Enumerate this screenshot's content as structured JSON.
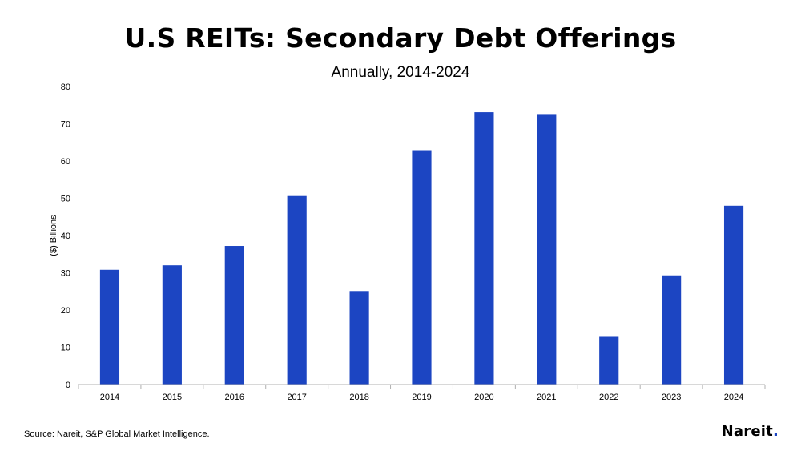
{
  "title": "U.S REITs: Secondary Debt Offerings",
  "subtitle": "Annually, 2014-2024",
  "source": "Source: Nareit, S&P Global Market Intelligence.",
  "logo": {
    "text": "Nareit",
    "dot": "."
  },
  "colors": {
    "bar": "#1c45c2",
    "axis": "#b0b0b0"
  },
  "chart_data": {
    "type": "bar",
    "title": "U.S REITs: Secondary Debt Offerings",
    "subtitle": "Annually, 2014-2024",
    "xlabel": "",
    "ylabel": "($) Billions",
    "categories": [
      "2014",
      "2015",
      "2016",
      "2017",
      "2018",
      "2019",
      "2020",
      "2021",
      "2022",
      "2023",
      "2024"
    ],
    "values": [
      30.8,
      32.0,
      37.2,
      50.6,
      25.1,
      62.9,
      73.1,
      72.6,
      12.8,
      29.3,
      48.0
    ],
    "ylim": [
      0,
      80
    ],
    "yticks": [
      0,
      10,
      20,
      30,
      40,
      50,
      60,
      70,
      80
    ],
    "grid": false,
    "legend": "none"
  }
}
